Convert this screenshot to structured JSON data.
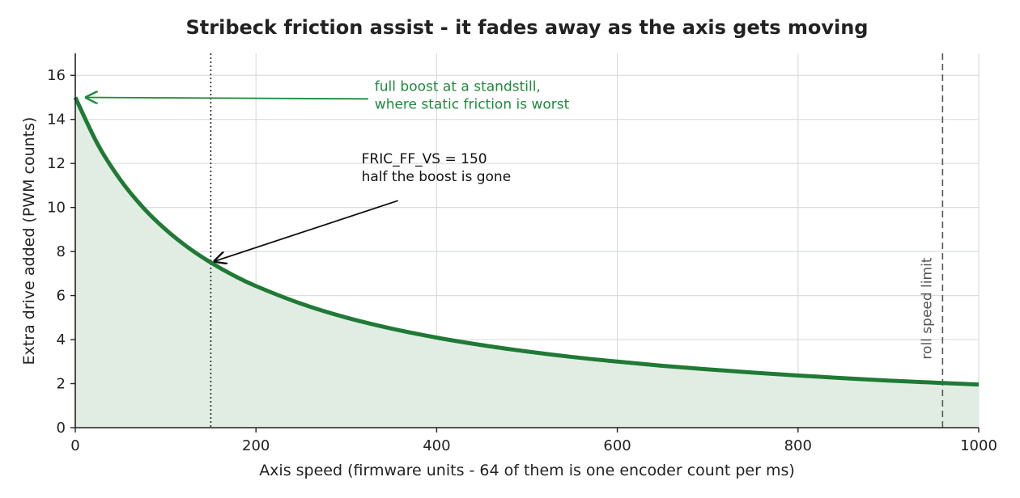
{
  "chart_data": {
    "type": "line",
    "title": "Stribeck friction assist - it fades away as the axis gets moving",
    "xlabel": "Axis speed  (firmware units - 64 of them is one encoder count per ms)",
    "ylabel": "Extra drive added  (PWM counts)",
    "xlim": [
      0,
      1000
    ],
    "ylim": [
      0,
      17
    ],
    "x_ticks": [
      0,
      200,
      400,
      600,
      800,
      1000
    ],
    "y_ticks": [
      0,
      2,
      4,
      6,
      8,
      10,
      12,
      14,
      16
    ],
    "grid": true,
    "series": [
      {
        "x": [
          0,
          25,
          50,
          75,
          100,
          125,
          150,
          175,
          200,
          250,
          300,
          350,
          400,
          450,
          500,
          550,
          600,
          650,
          700,
          750,
          800,
          850,
          900,
          960,
          1000
        ],
        "y": [
          15.0,
          12.86,
          11.25,
          10.0,
          9.0,
          8.18,
          7.5,
          6.92,
          6.43,
          5.63,
          5.0,
          4.5,
          4.09,
          3.75,
          3.46,
          3.21,
          3.0,
          2.81,
          2.65,
          2.5,
          2.37,
          2.25,
          2.14,
          2.03,
          1.96
        ],
        "color": "#1f7a35",
        "fill": "#e1ede3"
      }
    ],
    "reference_lines": [
      {
        "x": 150,
        "style": "dotted",
        "color": "#222222",
        "label": ""
      },
      {
        "x": 960,
        "style": "dashed",
        "color": "#555555",
        "label": "roll speed limit"
      }
    ],
    "annotations": [
      {
        "lines": [
          "full boost at a standstill,",
          "where static friction is worst"
        ],
        "color": "#1f8a3c",
        "text_x": 300,
        "text_y": 15.3,
        "arrow_to_x": 5,
        "arrow_to_y": 15.0
      },
      {
        "lines": [
          "FRIC_FF_VS = 150",
          "half the boost is gone"
        ],
        "color": "#111111",
        "text_x": 290,
        "text_y": 12.0,
        "arrow_to_x": 150,
        "arrow_to_y": 7.5
      }
    ]
  }
}
